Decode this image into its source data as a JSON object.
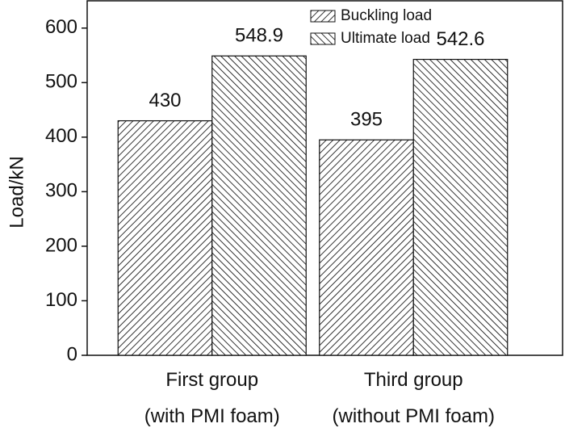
{
  "chart_data": {
    "type": "bar",
    "y_label": "Load/kN",
    "categories": [
      "First group\n(with PMI foam)",
      "Third group\n(without PMI foam)"
    ],
    "series": [
      {
        "name": "Buckling load",
        "color": "#000000",
        "hatch": "/",
        "values": [
          430,
          395
        ]
      },
      {
        "name": "Ultimate load",
        "color": "#000000",
        "hatch": "\\",
        "values": [
          548.9,
          542.6
        ]
      }
    ],
    "ylim": [
      0,
      650
    ],
    "yticks": [
      0,
      100,
      200,
      300,
      400,
      500,
      600
    ],
    "legend": "top-right"
  }
}
